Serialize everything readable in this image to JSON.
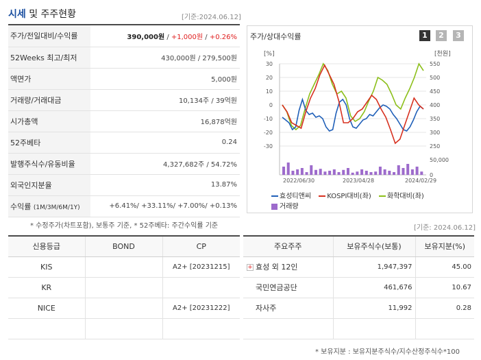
{
  "header": {
    "title_hl": "시세",
    "title_rest": " 및 주주현황",
    "as_of": "[기준:2024.06.12]"
  },
  "info": [
    {
      "label": "주가/전일대비/수익률",
      "price": "390,000원",
      "sep1": " / ",
      "change": "+1,000원",
      "sep2": " / ",
      "pct": "+0.26%"
    },
    {
      "label": "52Weeks 최고/최저",
      "value": "430,000원 / 279,500원"
    },
    {
      "label": "액면가",
      "value": "5,000원"
    },
    {
      "label": "거래량/거래대금",
      "value": "10,134주 / 39억원"
    },
    {
      "label": "시가총액",
      "value": "16,878억원"
    },
    {
      "label": "52주베타",
      "value": "0.24"
    },
    {
      "label": "발행주식수/유동비율",
      "value": "4,327,682주 / 54.72%"
    },
    {
      "label": "외국인지분율",
      "value": "13.87%"
    },
    {
      "label": "수익률",
      "label_sub": "(1M/3M/6M/1Y)",
      "value": "+6.41%/ +33.11%/ +7.00%/ +0.13%"
    }
  ],
  "note1": "* 수정주가(차트포함), 보통주 기준, * 52주베타: 주간수익률 기준",
  "chart_panel": {
    "title": "주가/상대수익률",
    "pages": [
      "1",
      "2",
      "3"
    ],
    "active_page": "1",
    "legend": {
      "company": "효성티앤씨",
      "kospi": "KOSPI대비(좌)",
      "sector": "화학대비(좌)",
      "volume": "거래량"
    }
  },
  "chart_data": {
    "type": "line",
    "left_axis": {
      "label": "[%]",
      "ticks": [
        30,
        20,
        10,
        0,
        -10,
        -20,
        -30
      ],
      "range": [
        -30,
        30
      ]
    },
    "right_axis": {
      "label": "[천원]",
      "ticks": [
        550,
        500,
        450,
        400,
        350,
        300,
        250
      ],
      "range": [
        250,
        550
      ]
    },
    "volume_axis": {
      "ticks": [
        "50,000",
        "0"
      ]
    },
    "x_ticks": [
      "2022/06/30",
      "2023/04/28",
      "2024/02/29"
    ],
    "colors": {
      "company": "#1f5fb8",
      "kospi": "#d7301f",
      "sector": "#8cbf1a",
      "volume": "#9d6bcc"
    },
    "series": [
      {
        "name": "효성티앤씨",
        "axis": "right",
        "values": [
          355,
          345,
          335,
          310,
          320,
          380,
          420,
          380,
          365,
          370,
          355,
          360,
          350,
          320,
          305,
          310,
          370,
          410,
          420,
          400,
          350,
          320,
          315,
          330,
          345,
          350,
          365,
          360,
          375,
          390,
          400,
          395,
          385,
          365,
          350,
          330,
          310,
          305,
          320,
          345,
          375,
          395,
          385
        ]
      },
      {
        "name": "KOSPI대비(좌)",
        "axis": "left",
        "values": [
          0,
          -5,
          -13,
          -15,
          -17,
          -5,
          5,
          12,
          22,
          29,
          22,
          15,
          3,
          -13,
          -13,
          -10,
          -5,
          -3,
          2,
          7,
          4,
          -3,
          -9,
          -18,
          -28,
          -25,
          -15,
          -5,
          5,
          0,
          -3
        ]
      },
      {
        "name": "화학대비(좌)",
        "axis": "left",
        "values": [
          0,
          -5,
          -15,
          -18,
          -15,
          -3,
          8,
          15,
          22,
          30,
          25,
          15,
          8,
          10,
          5,
          -8,
          -12,
          -10,
          -5,
          3,
          10,
          20,
          18,
          15,
          8,
          0,
          -3,
          5,
          12,
          20,
          30,
          25
        ]
      }
    ],
    "volume": [
      30,
      45,
      15,
      20,
      25,
      10,
      35,
      18,
      22,
      12,
      15,
      20,
      10,
      18,
      25,
      8,
      12,
      20,
      15,
      10,
      12,
      30,
      20,
      15,
      10,
      35,
      25,
      40,
      20,
      30,
      12
    ]
  },
  "as_of2": "[기준: 2024.06.12]",
  "credit": {
    "headers": [
      "신용등급",
      "BOND",
      "CP"
    ],
    "rows": [
      {
        "agency": "KIS",
        "bond": "",
        "cp": "A2+ [20231215]"
      },
      {
        "agency": "KR",
        "bond": "",
        "cp": ""
      },
      {
        "agency": "NICE",
        "bond": "",
        "cp": "A2+ [20231222]"
      },
      {
        "agency": "",
        "bond": "",
        "cp": ""
      }
    ]
  },
  "holders": {
    "headers": [
      "주요주주",
      "보유주식수(보통)",
      "보유지분(%)"
    ],
    "rows": [
      {
        "name": "효성 외 12인",
        "shares": "1,947,397",
        "pct": "45.00",
        "expandable": true
      },
      {
        "name": "국민연금공단",
        "shares": "461,676",
        "pct": "10.67",
        "expandable": false
      },
      {
        "name": "자사주",
        "shares": "11,992",
        "pct": "0.28",
        "expandable": false
      }
    ],
    "expand_glyph": "+"
  },
  "note2": "* 보유지분 : 보유지분주식수/지수산정주식수*100"
}
